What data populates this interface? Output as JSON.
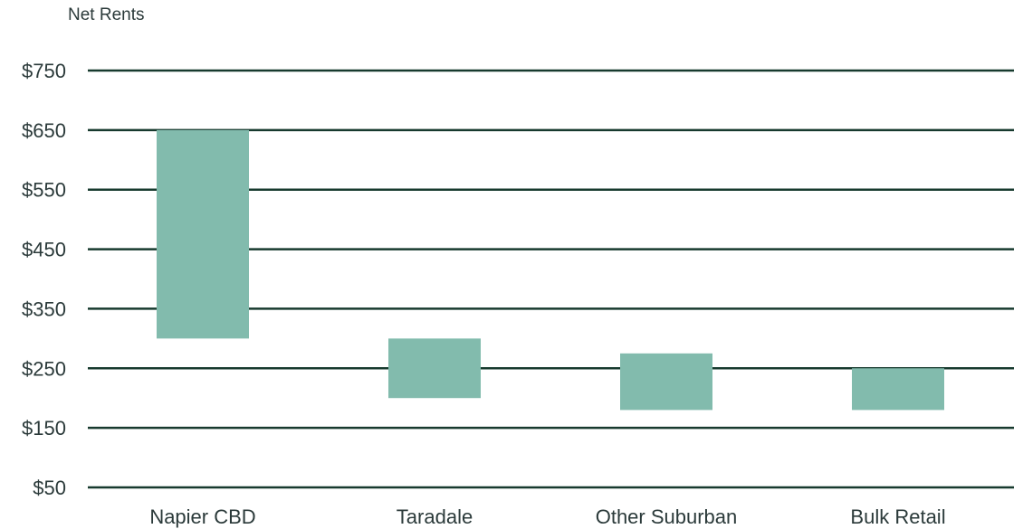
{
  "chart_data": {
    "type": "bar",
    "subtype": "floating-range",
    "ylabel": "Net Rents",
    "categories": [
      "Napier CBD",
      "Taradale",
      "Other Suburban",
      "Bulk Retail"
    ],
    "series": [
      {
        "low": [
          300,
          200,
          180,
          180
        ],
        "high": [
          650,
          300,
          275,
          250
        ]
      }
    ],
    "yticks": [
      50,
      150,
      250,
      350,
      450,
      550,
      650,
      750
    ],
    "ytick_labels": [
      "$50",
      "$150",
      "$250",
      "$350",
      "$450",
      "$550",
      "$650",
      "$750"
    ],
    "ylim": [
      50,
      750
    ],
    "grid": true,
    "legend": "none",
    "colors": {
      "bar": "#82bbad",
      "grid": "#173a2e",
      "text": "#2b3a3a"
    }
  }
}
